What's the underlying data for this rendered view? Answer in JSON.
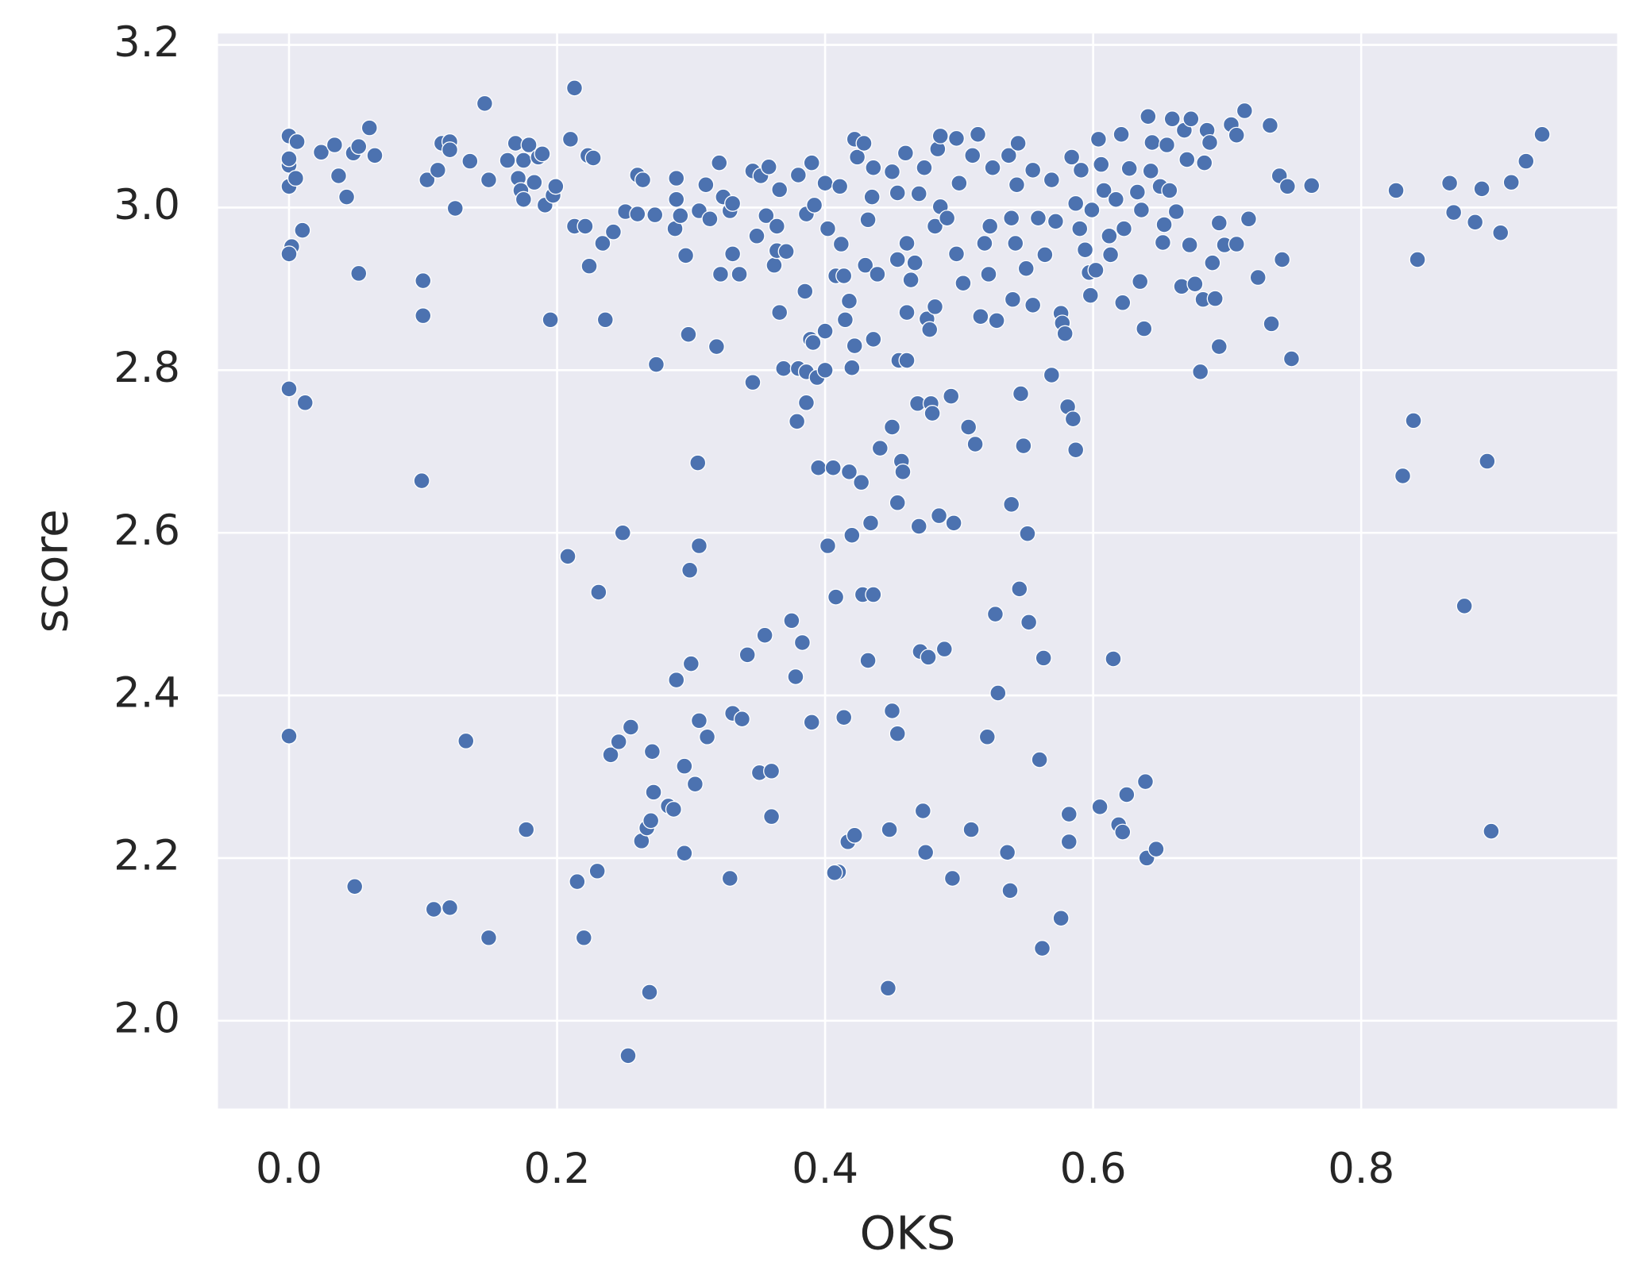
{
  "chart_data": {
    "type": "scatter",
    "x_label": "OKS",
    "y_label": "score",
    "color": "#4c72b0",
    "grid": true,
    "xlim": [
      -0.053,
      0.991
    ],
    "ylim": [
      1.892,
      3.214
    ],
    "xticks": [
      {
        "value": 0,
        "label": "0.0"
      },
      0.2,
      0.4,
      0.6,
      0.8
    ],
    "yticks": [
      {
        "value": 2,
        "label": "2.0"
      },
      2.2,
      2.4,
      2.6,
      2.8,
      {
        "value": 3,
        "label": "3.0"
      },
      3.2
    ],
    "x": [
      0,
      0,
      0,
      0,
      0.005,
      0.006,
      0.01,
      0.002,
      0,
      0,
      0.012,
      0,
      0.024,
      0.034,
      0.037,
      0.043,
      0.048,
      0.052,
      0.06,
      0.064,
      0.052,
      0.049,
      0.1,
      0.1,
      0.099,
      0.103,
      0.111,
      0.114,
      0.12,
      0.12,
      0.124,
      0.135,
      0.146,
      0.149,
      0.132,
      0.108,
      0.12,
      0.149,
      0.163,
      0.169,
      0.171,
      0.173,
      0.175,
      0.179,
      0.175,
      0.183,
      0.186,
      0.189,
      0.191,
      0.197,
      0.199,
      0.195,
      0.177,
      0.21,
      0.213,
      0.213,
      0.221,
      0.223,
      0.227,
      0.224,
      0.208,
      0.231,
      0.234,
      0.236,
      0.242,
      0.251,
      0.26,
      0.249,
      0.215,
      0.22,
      0.23,
      0.24,
      0.246,
      0.255,
      0.263,
      0.267,
      0.27,
      0.272,
      0.271,
      0.269,
      0.253,
      0.26,
      0.264,
      0.273,
      0.274,
      0.289,
      0.289,
      0.288,
      0.292,
      0.296,
      0.298,
      0.299,
      0.3,
      0.289,
      0.295,
      0.295,
      0.283,
      0.287,
      0.303,
      0.305,
      0.306,
      0.306,
      0.306,
      0.311,
      0.314,
      0.312,
      0.319,
      0.321,
      0.322,
      0.324,
      0.329,
      0.329,
      0.331,
      0.331,
      0.338,
      0.331,
      0.336,
      0.342,
      0.346,
      0.346,
      0.349,
      0.352,
      0.351,
      0.355,
      0.356,
      0.358,
      0.36,
      0.36,
      0.362,
      0.364,
      0.366,
      0.366,
      0.369,
      0.371,
      0.364,
      0.375,
      0.378,
      0.379,
      0.383,
      0.38,
      0.386,
      0.385,
      0.39,
      0.386,
      0.389,
      0.391,
      0.394,
      0.395,
      0.38,
      0.386,
      0.392,
      0.39,
      0.4,
      0.4,
      0.4,
      0.402,
      0.402,
      0.406,
      0.408,
      0.408,
      0.41,
      0.407,
      0.411,
      0.412,
      0.414,
      0.415,
      0.414,
      0.417,
      0.418,
      0.42,
      0.42,
      0.418,
      0.422,
      0.422,
      0.422,
      0.424,
      0.427,
      0.428,
      0.429,
      0.43,
      0.432,
      0.432,
      0.434,
      0.435,
      0.436,
      0.436,
      0.436,
      0.439,
      0.441,
      0.447,
      0.448,
      0.45,
      0.45,
      0.45,
      0.454,
      0.454,
      0.454,
      0.454,
      0.455,
      0.457,
      0.458,
      0.46,
      0.461,
      0.461,
      0.461,
      0.464,
      0.467,
      0.47,
      0.469,
      0.47,
      0.471,
      0.473,
      0.474,
      0.475,
      0.476,
      0.477,
      0.478,
      0.479,
      0.48,
      0.482,
      0.482,
      0.484,
      0.485,
      0.486,
      0.486,
      0.489,
      0.491,
      0.494,
      0.495,
      0.496,
      0.498,
      0.498,
      0.5,
      0.503,
      0.507,
      0.509,
      0.51,
      0.512,
      0.514,
      0.516,
      0.519,
      0.521,
      0.522,
      0.523,
      0.525,
      0.527,
      0.528,
      0.529,
      0.536,
      0.537,
      0.538,
      0.539,
      0.539,
      0.54,
      0.542,
      0.543,
      0.544,
      0.545,
      0.546,
      0.548,
      0.55,
      0.551,
      0.552,
      0.555,
      0.555,
      0.559,
      0.56,
      0.562,
      0.563,
      0.564,
      0.569,
      0.569,
      0.572,
      0.576,
      0.576,
      0.577,
      0.579,
      0.581,
      0.582,
      0.582,
      0.584,
      0.585,
      0.587,
      0.587,
      0.59,
      0.591,
      0.594,
      0.597,
      0.598,
      0.599,
      0.602,
      0.604,
      0.605,
      0.606,
      0.608,
      0.612,
      0.613,
      0.615,
      0.617,
      0.619,
      0.621,
      0.622,
      0.622,
      0.623,
      0.625,
      0.627,
      0.633,
      0.635,
      0.636,
      0.638,
      0.639,
      0.64,
      0.641,
      0.643,
      0.644,
      0.647,
      0.65,
      0.652,
      0.653,
      0.655,
      0.657,
      0.659,
      0.662,
      0.666,
      0.668,
      0.67,
      0.672,
      0.673,
      0.676,
      0.68,
      0.682,
      0.683,
      0.685,
      0.687,
      0.689,
      0.691,
      0.694,
      0.694,
      0.698,
      0.703,
      0.707,
      0.707,
      0.713,
      0.716,
      0.723,
      0.732,
      0.733,
      0.739,
      0.741,
      0.745,
      0.748,
      0.763,
      0.826,
      0.831,
      0.839,
      0.842,
      0.866,
      0.869,
      0.877,
      0.885,
      0.89,
      0.894,
      0.897,
      0.904,
      0.912,
      0.923,
      0.935
    ],
    "values": [
      3.088,
      3.052,
      3.06,
      3.026,
      3.036,
      3.081,
      2.972,
      2.952,
      2.943,
      2.777,
      2.76,
      2.35,
      3.068,
      3.077,
      3.039,
      3.013,
      3.067,
      3.075,
      3.098,
      3.064,
      2.919,
      2.165,
      2.867,
      2.91,
      2.664,
      3.034,
      3.046,
      3.079,
      3.081,
      3.071,
      2.999,
      3.057,
      3.128,
      3.034,
      2.344,
      2.137,
      2.139,
      2.102,
      3.058,
      3.079,
      3.036,
      3.021,
      3.058,
      3.077,
      3.01,
      3.031,
      3.062,
      3.066,
      3.003,
      3.015,
      3.026,
      2.862,
      2.235,
      3.084,
      3.147,
      2.977,
      2.977,
      3.064,
      3.061,
      2.928,
      2.571,
      2.527,
      2.956,
      2.862,
      2.97,
      2.995,
      2.992,
      2.6,
      2.171,
      2.102,
      2.184,
      2.327,
      2.343,
      2.361,
      2.221,
      2.237,
      2.246,
      2.281,
      2.331,
      2.035,
      1.957,
      3.04,
      3.034,
      2.991,
      2.807,
      3.036,
      3.01,
      2.974,
      2.99,
      2.941,
      2.844,
      2.554,
      2.439,
      2.419,
      2.313,
      2.206,
      2.264,
      2.26,
      2.291,
      2.686,
      2.584,
      2.369,
      2.996,
      3.028,
      2.986,
      2.349,
      2.829,
      3.055,
      2.918,
      3.013,
      2.996,
      2.175,
      3.005,
      2.378,
      2.371,
      2.943,
      2.918,
      2.45,
      3.045,
      2.785,
      2.965,
      3.039,
      2.305,
      2.474,
      2.99,
      3.05,
      2.307,
      2.251,
      2.929,
      2.947,
      3.022,
      2.871,
      2.802,
      2.946,
      2.977,
      2.492,
      2.423,
      2.737,
      2.465,
      2.802,
      2.76,
      2.897,
      2.367,
      2.798,
      2.838,
      2.834,
      2.791,
      2.68,
      3.04,
      2.992,
      3.003,
      3.055,
      3.03,
      2.848,
      2.8,
      2.974,
      2.584,
      2.68,
      2.916,
      2.521,
      2.183,
      2.182,
      3.026,
      2.955,
      2.916,
      2.862,
      2.373,
      2.22,
      2.675,
      2.597,
      2.803,
      2.885,
      2.228,
      2.83,
      3.084,
      3.062,
      2.662,
      2.524,
      3.079,
      2.929,
      2.985,
      2.443,
      2.612,
      3.013,
      2.524,
      2.838,
      3.049,
      2.918,
      2.704,
      2.04,
      2.235,
      3.044,
      2.73,
      2.381,
      3.018,
      2.936,
      2.637,
      2.353,
      2.812,
      2.688,
      2.675,
      3.067,
      2.871,
      2.812,
      2.956,
      2.911,
      2.932,
      3.017,
      2.759,
      2.608,
      2.454,
      2.258,
      3.049,
      2.207,
      2.863,
      2.447,
      2.85,
      2.759,
      2.747,
      2.977,
      2.878,
      3.072,
      2.621,
      3.088,
      3.001,
      2.457,
      2.987,
      2.768,
      2.175,
      2.612,
      3.085,
      2.943,
      3.03,
      2.907,
      2.73,
      2.235,
      3.064,
      2.709,
      3.09,
      2.866,
      2.956,
      2.349,
      2.918,
      2.977,
      3.049,
      2.5,
      2.861,
      2.403,
      2.207,
      3.064,
      2.16,
      2.635,
      2.987,
      2.887,
      2.956,
      3.028,
      3.079,
      2.531,
      2.771,
      2.707,
      2.925,
      2.599,
      2.49,
      3.046,
      2.88,
      2.987,
      2.321,
      2.089,
      2.446,
      2.942,
      3.034,
      2.794,
      2.983,
      2.126,
      2.87,
      2.858,
      2.845,
      2.755,
      2.22,
      2.254,
      3.062,
      2.74,
      2.702,
      3.005,
      2.974,
      3.046,
      2.948,
      2.92,
      2.892,
      2.997,
      2.923,
      3.084,
      2.263,
      3.053,
      3.021,
      2.965,
      2.942,
      2.445,
      3.01,
      2.241,
      3.09,
      2.232,
      2.883,
      2.974,
      2.278,
      3.048,
      3.019,
      2.909,
      2.997,
      2.851,
      2.294,
      2.2,
      3.112,
      3.045,
      3.08,
      2.211,
      3.026,
      2.957,
      2.979,
      3.077,
      3.021,
      3.109,
      2.995,
      2.903,
      3.095,
      3.059,
      2.954,
      3.109,
      2.906,
      2.798,
      2.887,
      3.055,
      3.095,
      3.08,
      2.932,
      2.888,
      2.981,
      2.829,
      2.954,
      3.102,
      3.089,
      2.955,
      3.119,
      2.986,
      2.914,
      3.101,
      2.857,
      3.039,
      2.936,
      3.026,
      2.814,
      3.027,
      3.021,
      2.67,
      2.738,
      2.936,
      3.03,
      2.994,
      2.51,
      2.982,
      3.023,
      2.688,
      2.233,
      2.969,
      3.031,
      3.057,
      3.09
    ]
  }
}
